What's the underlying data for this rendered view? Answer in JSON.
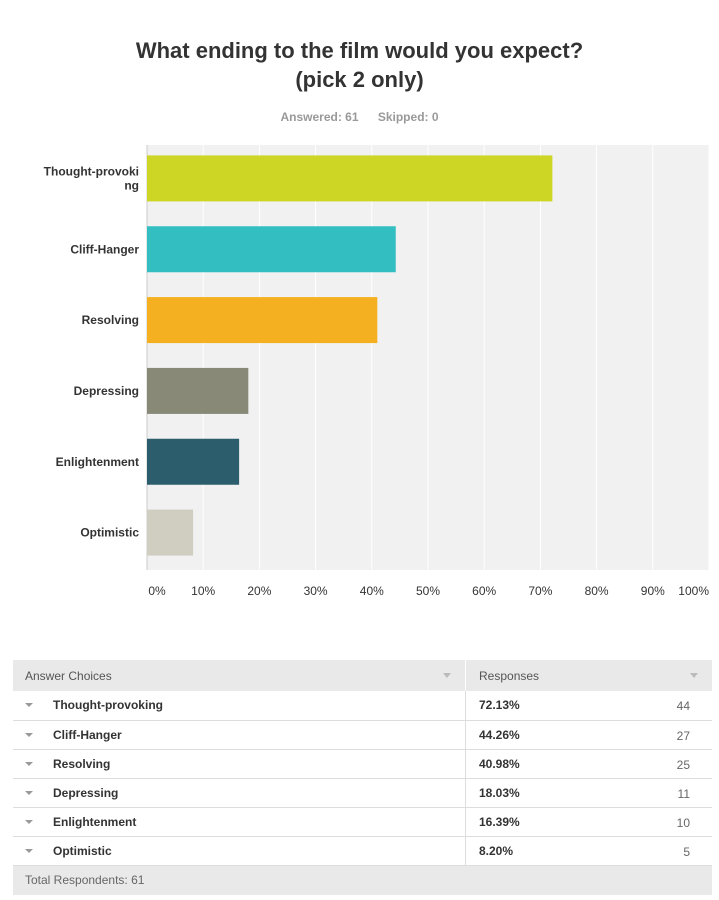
{
  "title_line1": "What ending to the film would you expect?",
  "title_line2": "(pick 2 only)",
  "answered": "Answered: 61",
  "skipped": "Skipped: 0",
  "chart_data": {
    "type": "bar",
    "orientation": "horizontal",
    "categories": [
      "Thought-provoking",
      "Cliff-Hanger",
      "Resolving",
      "Depressing",
      "Enlightenment",
      "Optimistic"
    ],
    "category_labels": [
      [
        "Thought-provoki",
        "ng"
      ],
      [
        "Cliff-Hanger"
      ],
      [
        "Resolving"
      ],
      [
        "Depressing"
      ],
      [
        "Enlightenment"
      ],
      [
        "Optimistic"
      ]
    ],
    "values": [
      72.13,
      44.26,
      40.98,
      18.03,
      16.39,
      8.2
    ],
    "colors": [
      "#cdd525",
      "#33bfc1",
      "#f5b022",
      "#898978",
      "#2c5d6c",
      "#d0cec0"
    ],
    "xlim": [
      0,
      100
    ],
    "xticks": [
      "0%",
      "10%",
      "20%",
      "30%",
      "40%",
      "50%",
      "60%",
      "70%",
      "80%",
      "90%",
      "100%"
    ],
    "plot_bg": "#f1f1f1",
    "grid": true
  },
  "table": {
    "header_choices": "Answer Choices",
    "header_responses": "Responses",
    "rows": [
      {
        "label": "Thought-provoking",
        "pct": "72.13%",
        "count": "44"
      },
      {
        "label": "Cliff-Hanger",
        "pct": "44.26%",
        "count": "27"
      },
      {
        "label": "Resolving",
        "pct": "40.98%",
        "count": "25"
      },
      {
        "label": "Depressing",
        "pct": "18.03%",
        "count": "11"
      },
      {
        "label": "Enlightenment",
        "pct": "16.39%",
        "count": "10"
      },
      {
        "label": "Optimistic",
        "pct": "8.20%",
        "count": "5"
      }
    ],
    "total": "Total Respondents: 61"
  }
}
